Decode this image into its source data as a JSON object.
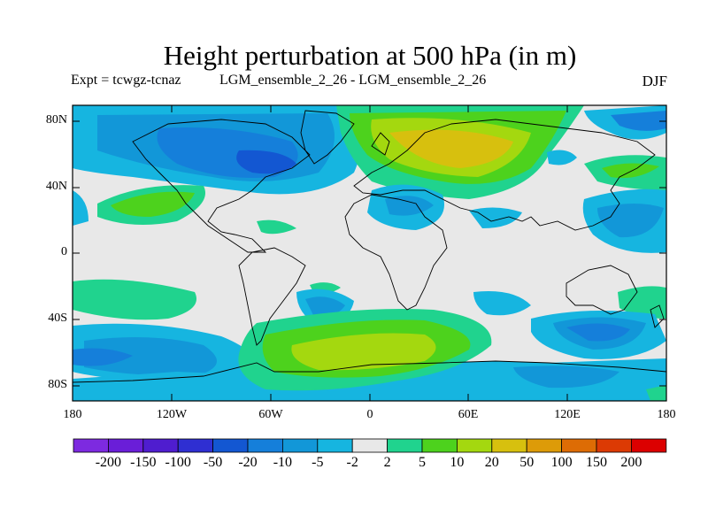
{
  "title": "Height perturbation at 500 hPa (in m)",
  "experiment": "Expt = tcwgz-tcnaz",
  "runs": "LGM_ensemble_2_26 - LGM_ensemble_2_26",
  "season": "DJF",
  "lat_labels": [
    "80N",
    "40N",
    "0",
    "40S",
    "80S"
  ],
  "lon_labels": [
    "180",
    "120W",
    "60W",
    "0",
    "60E",
    "120E",
    "180"
  ],
  "colorbar": {
    "colors": [
      "#7d2ae0",
      "#6a1ed8",
      "#4f1dcf",
      "#2f2fd2",
      "#1357d2",
      "#157fda",
      "#1297d8",
      "#16b5e0",
      "#e8e8e8",
      "#20d38e",
      "#4dd21d",
      "#a4d80f",
      "#d7c00e",
      "#dd9b08",
      "#dd6c05",
      "#dc3a04",
      "#dc0000"
    ],
    "labels": [
      "-200",
      "-150",
      "-100",
      "-50",
      "-20",
      "-10",
      "-5",
      "-2",
      "2",
      "5",
      "10",
      "20",
      "50",
      "100",
      "150",
      "200"
    ]
  }
}
